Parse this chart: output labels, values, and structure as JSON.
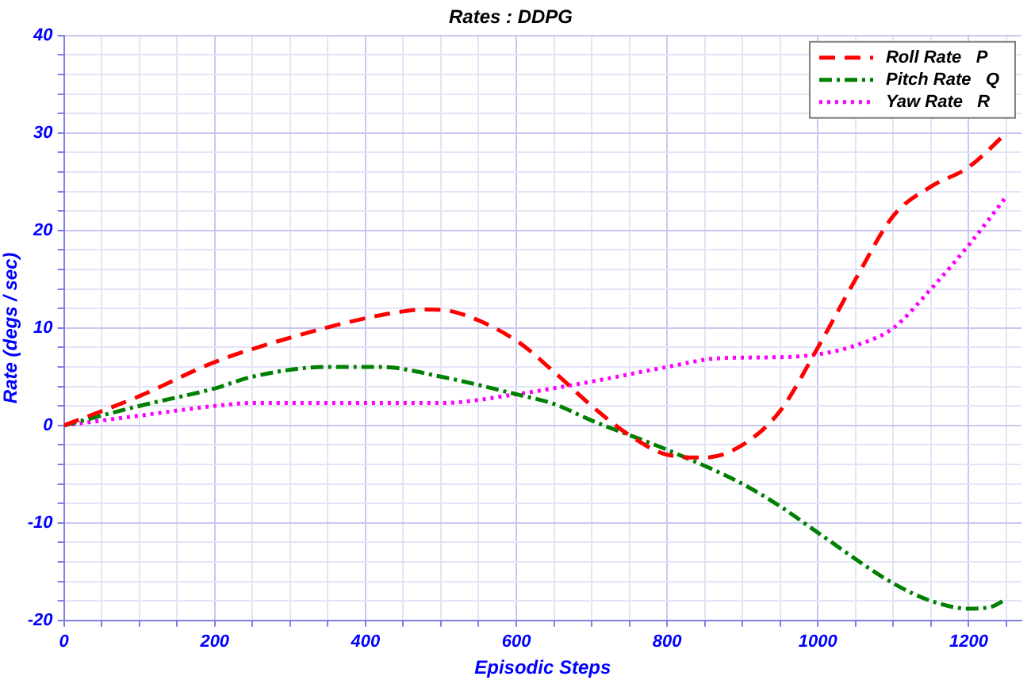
{
  "chart_data": {
    "type": "line",
    "title": "Rates : DDPG",
    "xlabel": "Episodic Steps",
    "ylabel": "Rate (degs / sec)",
    "xlim": [
      0,
      1270
    ],
    "ylim": [
      -20,
      40
    ],
    "xticks": [
      0,
      {
        "value": 50,
        "label": null
      },
      {
        "value": 100,
        "label": null
      },
      {
        "value": 150,
        "label": null
      },
      200,
      {
        "value": 250,
        "label": null
      },
      {
        "value": 300,
        "label": null
      },
      {
        "value": 350,
        "label": null
      },
      400,
      {
        "value": 450,
        "label": null
      },
      {
        "value": 500,
        "label": null
      },
      {
        "value": 550,
        "label": null
      },
      600,
      {
        "value": 650,
        "label": null
      },
      {
        "value": 700,
        "label": null
      },
      {
        "value": 750,
        "label": null
      },
      800,
      {
        "value": 850,
        "label": null
      },
      {
        "value": 900,
        "label": null
      },
      {
        "value": 950,
        "label": null
      },
      1000,
      {
        "value": 1050,
        "label": null
      },
      {
        "value": 1100,
        "label": null
      },
      {
        "value": 1150,
        "label": null
      },
      1200,
      {
        "value": 1250,
        "label": null
      }
    ],
    "yticks": [
      -20,
      {
        "value": -18,
        "label": null
      },
      {
        "value": -16,
        "label": null
      },
      {
        "value": -14,
        "label": null
      },
      {
        "value": -12,
        "label": null
      },
      -10,
      {
        "value": -8,
        "label": null
      },
      {
        "value": -6,
        "label": null
      },
      {
        "value": -4,
        "label": null
      },
      {
        "value": -2,
        "label": null
      },
      0,
      {
        "value": 2,
        "label": null
      },
      {
        "value": 4,
        "label": null
      },
      {
        "value": 6,
        "label": null
      },
      {
        "value": 8,
        "label": null
      },
      10,
      {
        "value": 12,
        "label": null
      },
      {
        "value": 14,
        "label": null
      },
      {
        "value": 16,
        "label": null
      },
      {
        "value": 18,
        "label": null
      },
      20,
      {
        "value": 22,
        "label": null
      },
      {
        "value": 24,
        "label": null
      },
      {
        "value": 26,
        "label": null
      },
      {
        "value": 28,
        "label": null
      },
      30,
      {
        "value": 32,
        "label": null
      },
      {
        "value": 34,
        "label": null
      },
      {
        "value": 36,
        "label": null
      },
      {
        "value": 38,
        "label": null
      },
      40
    ],
    "grid": true,
    "legend": "top right",
    "marker": "none",
    "series": [
      {
        "name": "Roll Rate   P",
        "color": "#ff0000",
        "line_style": "dashed",
        "x": [
          0,
          100,
          200,
          300,
          400,
          450,
          480,
          520,
          600,
          650,
          700,
          750,
          800,
          850,
          900,
          950,
          1000,
          1050,
          1100,
          1150,
          1200,
          1250
        ],
        "values": [
          0,
          3,
          6.5,
          9,
          11,
          11.7,
          11.9,
          11.6,
          8.7,
          5.5,
          2,
          -1,
          -3,
          -3.3,
          -2,
          1.5,
          8,
          15,
          21.5,
          24.5,
          26.5,
          30
        ]
      },
      {
        "name": "Pitch Rate   Q",
        "color": "#008000",
        "line_style": "dashdot",
        "x": [
          0,
          100,
          200,
          250,
          350,
          420,
          500,
          600,
          650,
          700,
          800,
          900,
          950,
          1000,
          1100,
          1150,
          1200,
          1230,
          1250
        ],
        "values": [
          0,
          2,
          3.8,
          5,
          6,
          6,
          5,
          3.2,
          2.2,
          0.5,
          -2.5,
          -6,
          -8.3,
          -11,
          -16.2,
          -18,
          -18.8,
          -18.6,
          -17.8
        ]
      },
      {
        "name": "Yaw Rate   R",
        "color": "#ff00ff",
        "line_style": "dotted",
        "x": [
          0,
          100,
          200,
          250,
          500,
          600,
          700,
          800,
          870,
          950,
          1000,
          1050,
          1100,
          1150,
          1200,
          1250
        ],
        "values": [
          0,
          1,
          2,
          2.3,
          2.3,
          3.2,
          4.5,
          6,
          6.9,
          7,
          7.3,
          8.2,
          10,
          14,
          18.5,
          23.5
        ]
      }
    ]
  }
}
